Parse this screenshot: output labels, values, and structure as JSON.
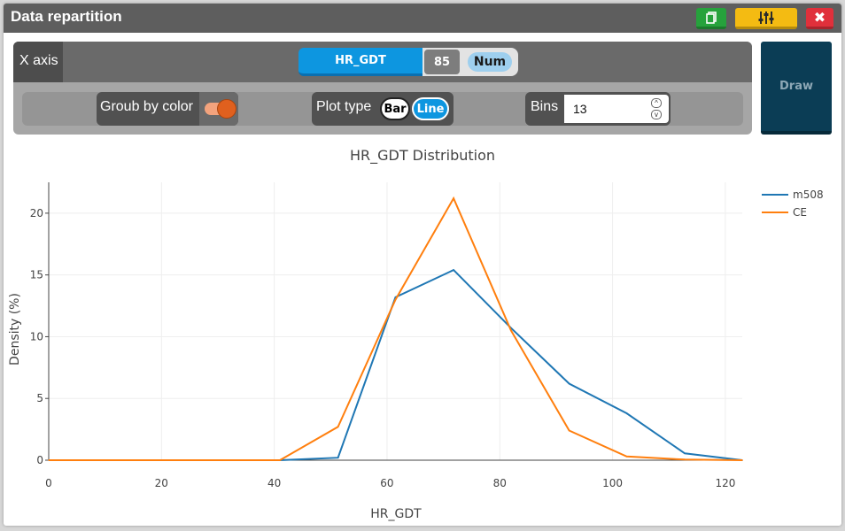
{
  "window": {
    "title": "Data repartition",
    "close_glyph": "✖"
  },
  "toolbar": {
    "icons": [
      "copy-icon",
      "sliders-icon",
      "close-icon"
    ],
    "colors": {
      "copy": "#26a23c",
      "settings": "#f4bb12",
      "close": "#e0303b"
    }
  },
  "controls": {
    "x_axis_label": "X axis",
    "field": "HR_GDT",
    "count": "85",
    "type_badge": "Num",
    "group_by_label": "Groub by color",
    "group_by_enabled": true,
    "plot_type_label": "Plot type",
    "plot_type_options": [
      "Bar",
      "Line"
    ],
    "plot_type_selected": "Line",
    "bins_label": "Bins",
    "bins_value": "13",
    "draw_label": "Draw"
  },
  "chart_data": {
    "type": "line",
    "title": "HR_GDT Distribution",
    "xlabel": "HR_GDT",
    "ylabel": "Density (%)",
    "xlim": [
      0,
      123
    ],
    "ylim": [
      0,
      22.5
    ],
    "xticks": [
      0,
      20,
      40,
      60,
      80,
      100,
      120
    ],
    "yticks": [
      0,
      5,
      10,
      15,
      20
    ],
    "grid": true,
    "legend_position": "top-right",
    "series": [
      {
        "name": "m508",
        "color": "#1f77b4",
        "x": [
          0,
          10.3,
          20.5,
          30.8,
          41,
          51.3,
          61.5,
          71.8,
          82,
          92.3,
          102.5,
          112.8,
          123
        ],
        "values": [
          0,
          0,
          0,
          0,
          0,
          0.2,
          13.2,
          15.4,
          10.7,
          6.2,
          3.8,
          0.55,
          0
        ]
      },
      {
        "name": "CE",
        "color": "#ff7f0e",
        "x": [
          0,
          10.3,
          20.5,
          30.8,
          41,
          51.3,
          61.5,
          71.8,
          82,
          92.3,
          102.5,
          112.8,
          123
        ],
        "values": [
          0,
          0,
          0,
          0,
          0,
          2.7,
          13.0,
          21.2,
          10.5,
          2.4,
          0.3,
          0.05,
          0
        ]
      }
    ]
  }
}
